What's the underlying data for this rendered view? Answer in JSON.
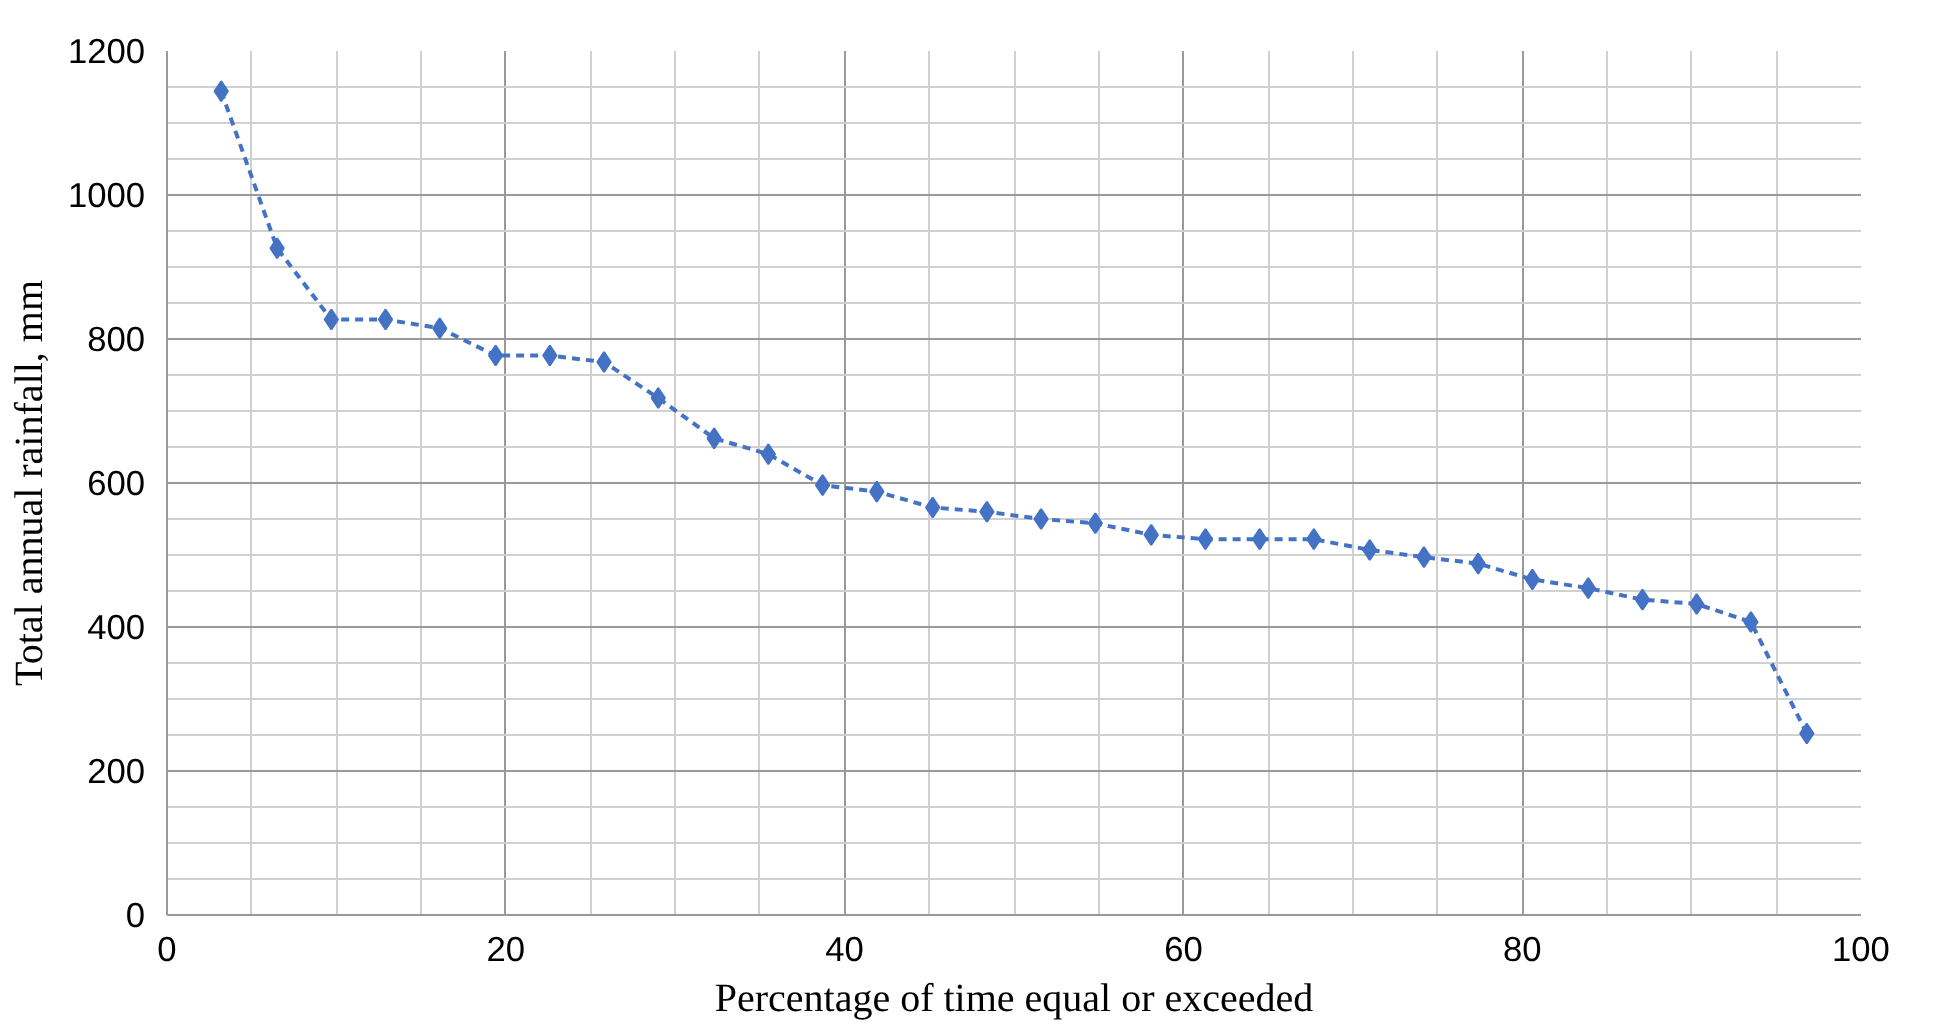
{
  "chart_data": {
    "type": "line",
    "xlabel": "Percentage of time equal or exceeded",
    "ylabel": "Total annual rainfall, mm",
    "x": [
      3.2,
      6.5,
      9.7,
      12.9,
      16.1,
      19.4,
      22.6,
      25.8,
      29.0,
      32.3,
      35.5,
      38.7,
      41.9,
      45.2,
      48.4,
      51.6,
      54.8,
      58.1,
      61.3,
      64.5,
      67.7,
      71.0,
      74.2,
      77.4,
      80.6,
      83.9,
      87.1,
      90.3,
      93.5,
      96.8
    ],
    "series": [
      {
        "color": "#4472c4",
        "values": [
          1144,
          926,
          827,
          827,
          815,
          777,
          777,
          768,
          718,
          662,
          640,
          597,
          588,
          566,
          560,
          550,
          544,
          528,
          522,
          522,
          522,
          507,
          497,
          488,
          466,
          454,
          438,
          432,
          407,
          252
        ]
      }
    ],
    "xlim": [
      0,
      100
    ],
    "xticks": [
      0,
      20,
      40,
      60,
      80,
      100
    ],
    "ylim": [
      0,
      1200
    ],
    "yticks": [
      0,
      200,
      400,
      600,
      800,
      1000,
      1200
    ],
    "grid": true,
    "marker": "diamond",
    "line_style": "dashed"
  }
}
